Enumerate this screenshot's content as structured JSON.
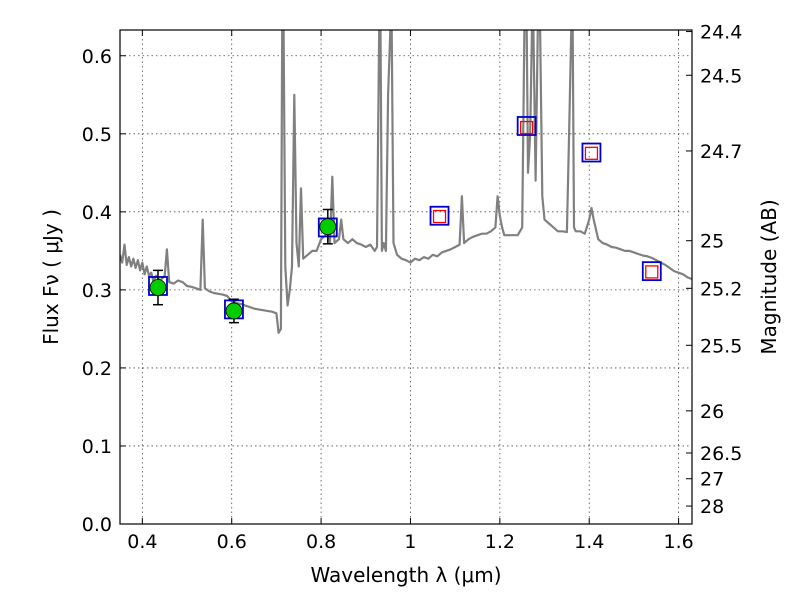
{
  "chart_data": {
    "type": "line",
    "xlabel": "Wavelength  λ (μm)",
    "ylabel": "Flux  Fν  ( μJy )",
    "ylabel_right": "Magnitude (AB)",
    "xlim": [
      0.35,
      1.63
    ],
    "ylim": [
      0.0,
      0.633
    ],
    "grid": true,
    "x_ticks": [
      0.4,
      0.6,
      0.8,
      1.0,
      1.2,
      1.4,
      1.6
    ],
    "x_tick_labels": [
      "0.4",
      "0.6",
      "0.8",
      "1",
      "1.2",
      "1.4",
      "1.6"
    ],
    "y_ticks": [
      0.0,
      0.1,
      0.2,
      0.3,
      0.4,
      0.5,
      0.6
    ],
    "y_tick_labels": [
      "0.0",
      "0.1",
      "0.2",
      "0.3",
      "0.4",
      "0.5",
      "0.6"
    ],
    "right_ticks": [
      {
        "label": "24.4",
        "flux": 0.631
      },
      {
        "label": "24.5",
        "flux": 0.575
      },
      {
        "label": "24.7",
        "flux": 0.478
      },
      {
        "label": "25",
        "flux": 0.363
      },
      {
        "label": "25.2",
        "flux": 0.302
      },
      {
        "label": "25.5",
        "flux": 0.229
      },
      {
        "label": "26",
        "flux": 0.145
      },
      {
        "label": "26.5",
        "flux": 0.091
      },
      {
        "label": "27",
        "flux": 0.058
      },
      {
        "label": "28",
        "flux": 0.023
      }
    ],
    "series": [
      {
        "kind": "line",
        "color": "#808080",
        "points": [
          [
            0.35,
            0.345
          ],
          [
            0.355,
            0.335
          ],
          [
            0.36,
            0.358
          ],
          [
            0.365,
            0.332
          ],
          [
            0.37,
            0.342
          ],
          [
            0.375,
            0.33
          ],
          [
            0.38,
            0.34
          ],
          [
            0.385,
            0.328
          ],
          [
            0.39,
            0.338
          ],
          [
            0.395,
            0.325
          ],
          [
            0.4,
            0.335
          ],
          [
            0.405,
            0.32
          ],
          [
            0.41,
            0.33
          ],
          [
            0.415,
            0.318
          ],
          [
            0.42,
            0.322
          ],
          [
            0.425,
            0.31
          ],
          [
            0.43,
            0.318
          ],
          [
            0.44,
            0.312
          ],
          [
            0.45,
            0.318
          ],
          [
            0.455,
            0.352
          ],
          [
            0.46,
            0.31
          ],
          [
            0.47,
            0.308
          ],
          [
            0.48,
            0.312
          ],
          [
            0.49,
            0.31
          ],
          [
            0.5,
            0.305
          ],
          [
            0.51,
            0.304
          ],
          [
            0.52,
            0.302
          ],
          [
            0.53,
            0.3
          ],
          [
            0.535,
            0.39
          ],
          [
            0.54,
            0.302
          ],
          [
            0.55,
            0.298
          ],
          [
            0.56,
            0.296
          ],
          [
            0.57,
            0.295
          ],
          [
            0.58,
            0.294
          ],
          [
            0.59,
            0.292
          ],
          [
            0.6,
            0.285
          ],
          [
            0.61,
            0.283
          ],
          [
            0.62,
            0.282
          ],
          [
            0.63,
            0.28
          ],
          [
            0.64,
            0.278
          ],
          [
            0.65,
            0.276
          ],
          [
            0.66,
            0.275
          ],
          [
            0.67,
            0.274
          ],
          [
            0.68,
            0.273
          ],
          [
            0.69,
            0.272
          ],
          [
            0.7,
            0.27
          ],
          [
            0.705,
            0.245
          ],
          [
            0.71,
            0.25
          ],
          [
            0.713,
            0.635
          ],
          [
            0.716,
            0.635
          ],
          [
            0.72,
            0.33
          ],
          [
            0.725,
            0.28
          ],
          [
            0.73,
            0.3
          ],
          [
            0.735,
            0.33
          ],
          [
            0.74,
            0.55
          ],
          [
            0.745,
            0.36
          ],
          [
            0.75,
            0.33
          ],
          [
            0.755,
            0.43
          ],
          [
            0.76,
            0.34
          ],
          [
            0.77,
            0.345
          ],
          [
            0.78,
            0.35
          ],
          [
            0.79,
            0.35
          ],
          [
            0.8,
            0.365
          ],
          [
            0.81,
            0.37
          ],
          [
            0.815,
            0.385
          ],
          [
            0.82,
            0.36
          ],
          [
            0.825,
            0.445
          ],
          [
            0.83,
            0.36
          ],
          [
            0.84,
            0.365
          ],
          [
            0.845,
            0.39
          ],
          [
            0.85,
            0.365
          ],
          [
            0.86,
            0.36
          ],
          [
            0.87,
            0.365
          ],
          [
            0.88,
            0.36
          ],
          [
            0.89,
            0.358
          ],
          [
            0.9,
            0.355
          ],
          [
            0.91,
            0.358
          ],
          [
            0.92,
            0.35
          ],
          [
            0.925,
            0.355
          ],
          [
            0.93,
            0.635
          ],
          [
            0.933,
            0.635
          ],
          [
            0.936,
            0.35
          ],
          [
            0.94,
            0.36
          ],
          [
            0.945,
            0.35
          ],
          [
            0.95,
            0.55
          ],
          [
            0.955,
            0.635
          ],
          [
            0.958,
            0.635
          ],
          [
            0.962,
            0.36
          ],
          [
            0.97,
            0.345
          ],
          [
            0.98,
            0.34
          ],
          [
            0.99,
            0.338
          ],
          [
            1.0,
            0.335
          ],
          [
            1.01,
            0.34
          ],
          [
            1.02,
            0.338
          ],
          [
            1.03,
            0.342
          ],
          [
            1.04,
            0.34
          ],
          [
            1.05,
            0.345
          ],
          [
            1.06,
            0.343
          ],
          [
            1.07,
            0.348
          ],
          [
            1.08,
            0.35
          ],
          [
            1.09,
            0.352
          ],
          [
            1.1,
            0.355
          ],
          [
            1.11,
            0.358
          ],
          [
            1.115,
            0.42
          ],
          [
            1.12,
            0.36
          ],
          [
            1.13,
            0.365
          ],
          [
            1.14,
            0.368
          ],
          [
            1.15,
            0.37
          ],
          [
            1.16,
            0.372
          ],
          [
            1.17,
            0.372
          ],
          [
            1.18,
            0.375
          ],
          [
            1.19,
            0.38
          ],
          [
            1.195,
            0.42
          ],
          [
            1.2,
            0.395
          ],
          [
            1.205,
            0.38
          ],
          [
            1.21,
            0.37
          ],
          [
            1.22,
            0.37
          ],
          [
            1.23,
            0.37
          ],
          [
            1.24,
            0.37
          ],
          [
            1.25,
            0.38
          ],
          [
            1.255,
            0.635
          ],
          [
            1.26,
            0.635
          ],
          [
            1.263,
            0.45
          ],
          [
            1.268,
            0.5
          ],
          [
            1.272,
            0.635
          ],
          [
            1.275,
            0.635
          ],
          [
            1.28,
            0.44
          ],
          [
            1.285,
            0.635
          ],
          [
            1.29,
            0.635
          ],
          [
            1.295,
            0.42
          ],
          [
            1.3,
            0.39
          ],
          [
            1.31,
            0.385
          ],
          [
            1.32,
            0.38
          ],
          [
            1.33,
            0.375
          ],
          [
            1.34,
            0.375
          ],
          [
            1.35,
            0.374
          ],
          [
            1.355,
            0.5
          ],
          [
            1.36,
            0.635
          ],
          [
            1.363,
            0.635
          ],
          [
            1.366,
            0.38
          ],
          [
            1.37,
            0.375
          ],
          [
            1.38,
            0.375
          ],
          [
            1.39,
            0.372
          ],
          [
            1.4,
            0.39
          ],
          [
            1.405,
            0.405
          ],
          [
            1.41,
            0.39
          ],
          [
            1.42,
            0.365
          ],
          [
            1.43,
            0.36
          ],
          [
            1.44,
            0.358
          ],
          [
            1.45,
            0.355
          ],
          [
            1.46,
            0.354
          ],
          [
            1.47,
            0.352
          ],
          [
            1.48,
            0.35
          ],
          [
            1.49,
            0.35
          ],
          [
            1.5,
            0.348
          ],
          [
            1.51,
            0.346
          ],
          [
            1.52,
            0.344
          ],
          [
            1.53,
            0.343
          ],
          [
            1.54,
            0.341
          ],
          [
            1.55,
            0.338
          ],
          [
            1.56,
            0.335
          ],
          [
            1.57,
            0.332
          ],
          [
            1.58,
            0.328
          ],
          [
            1.59,
            0.324
          ],
          [
            1.6,
            0.322
          ],
          [
            1.61,
            0.32
          ],
          [
            1.62,
            0.316
          ],
          [
            1.63,
            0.314
          ]
        ]
      },
      {
        "kind": "model-photometry",
        "color": "#0000cc",
        "points": [
          [
            0.435,
            0.305
          ],
          [
            0.605,
            0.275
          ],
          [
            0.815,
            0.38
          ],
          [
            1.065,
            0.395
          ],
          [
            1.26,
            0.51
          ],
          [
            1.405,
            0.476
          ],
          [
            1.54,
            0.324
          ]
        ]
      },
      {
        "kind": "observed-detections",
        "color": "#00cc00",
        "points": [
          [
            0.435,
            0.303,
            0.022
          ],
          [
            0.605,
            0.273,
            0.015
          ],
          [
            0.815,
            0.381,
            0.022
          ]
        ]
      },
      {
        "kind": "observed-upper",
        "color": "#ff0000",
        "points": [
          [
            1.065,
            0.394
          ],
          [
            1.26,
            0.508
          ],
          [
            1.405,
            0.475
          ],
          [
            1.54,
            0.323
          ]
        ]
      }
    ]
  }
}
